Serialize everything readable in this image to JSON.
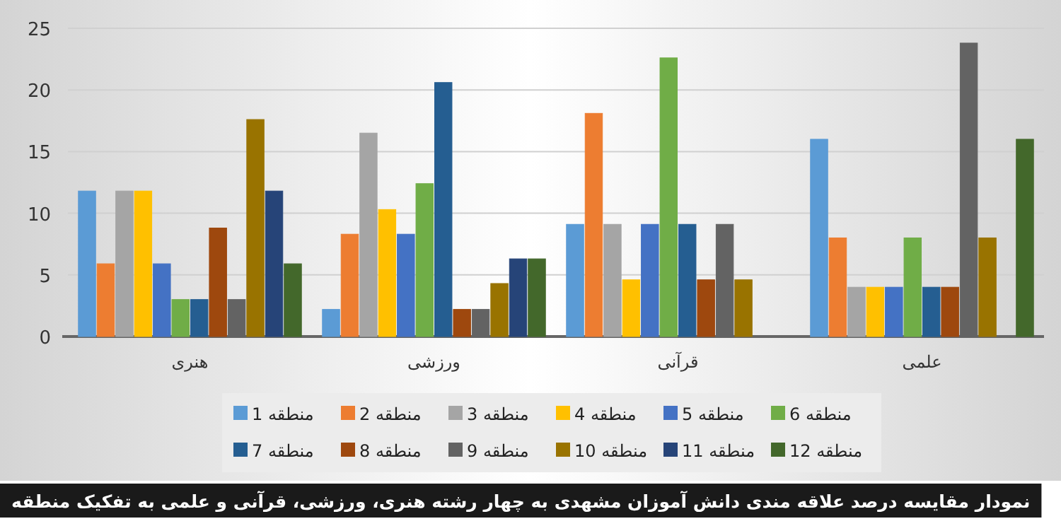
{
  "chart_data": {
    "type": "bar",
    "categories": [
      "هنری",
      "ورزشی",
      "قرآنی",
      "علمی"
    ],
    "ylim": [
      0,
      25
    ],
    "yticks": [
      0,
      5,
      10,
      15,
      20,
      25
    ],
    "grid": "y",
    "legend": "bottom",
    "annotations": [
      "نمودار مقایسه درصد علاقه مندی دانش آموزان مشهدی به چهار رشته هنری، ورزشی، قرآنی و علمی به تفکیک منطقه"
    ],
    "series": [
      {
        "name": "منطقه 1",
        "color": "#5b9bd5",
        "values": [
          11.8,
          2.2,
          9.1,
          16
        ]
      },
      {
        "name": "منطقه 2",
        "color": "#ed7d31",
        "values": [
          5.9,
          8.3,
          18.1,
          8
        ]
      },
      {
        "name": "منطقه 3",
        "color": "#a5a5a5",
        "values": [
          11.8,
          16.5,
          9.1,
          4
        ]
      },
      {
        "name": "منطقه 4",
        "color": "#ffc000",
        "values": [
          11.8,
          10.3,
          4.6,
          4
        ]
      },
      {
        "name": "منطقه 5",
        "color": "#4472c4",
        "values": [
          5.9,
          8.3,
          9.1,
          4
        ]
      },
      {
        "name": "منطقه 6",
        "color": "#70ad47",
        "values": [
          3,
          12.4,
          22.6,
          8
        ]
      },
      {
        "name": "منطقه 7",
        "color": "#255e91",
        "values": [
          3,
          20.6,
          9.1,
          4
        ]
      },
      {
        "name": "منطقه 8",
        "color": "#9e480e",
        "values": [
          8.8,
          2.2,
          4.6,
          4
        ]
      },
      {
        "name": "منطقه 9",
        "color": "#636363",
        "values": [
          3,
          2.2,
          9.1,
          23.8
        ]
      },
      {
        "name": "منطقه 10",
        "color": "#997300",
        "values": [
          17.6,
          4.3,
          4.6,
          8
        ]
      },
      {
        "name": "منطقه 11",
        "color": "#264478",
        "values": [
          11.8,
          6.3,
          0,
          0
        ]
      },
      {
        "name": "منطقه 12",
        "color": "#43682b",
        "values": [
          5.9,
          6.3,
          0,
          16
        ]
      }
    ]
  }
}
